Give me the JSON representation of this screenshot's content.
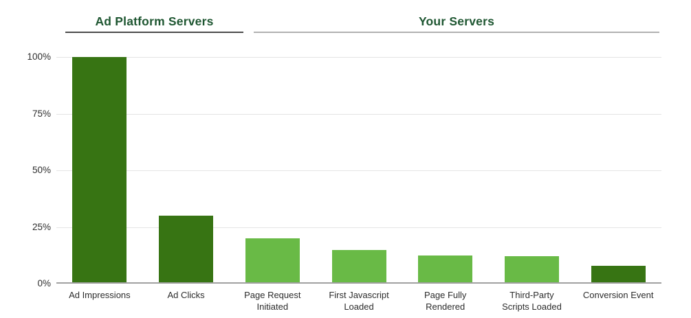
{
  "header": {
    "groups": [
      {
        "label": "Ad Platform Servers"
      },
      {
        "label": "Your Servers"
      }
    ]
  },
  "chart_data": {
    "type": "bar",
    "title": "",
    "xlabel": "",
    "ylabel": "",
    "ylim": [
      0,
      100
    ],
    "unit": "%",
    "grid": "horizontal",
    "legend": "none",
    "categories": [
      "Ad Impressions",
      "Ad Clicks",
      "Page Request Initiated",
      "First Javascript Loaded",
      "Page Fully Rendered",
      "Third-Party Scripts Loaded",
      "Conversion Event"
    ],
    "categories_wrapped": [
      [
        "Ad Impressions"
      ],
      [
        "Ad Clicks"
      ],
      [
        "Page Request",
        "Initiated"
      ],
      [
        "First Javascript",
        "Loaded"
      ],
      [
        "Page Fully",
        "Rendered"
      ],
      [
        "Third-Party",
        "Scripts Loaded"
      ],
      [
        "Conversion Event"
      ]
    ],
    "values": [
      100,
      30,
      20,
      15,
      12.5,
      12,
      8
    ],
    "y_ticks": [
      {
        "value": 100,
        "label": "100%"
      },
      {
        "value": 75,
        "label": "75%"
      },
      {
        "value": 50,
        "label": "50%"
      },
      {
        "value": 25,
        "label": "25%"
      },
      {
        "value": 0,
        "label": "0%"
      }
    ],
    "groups": [
      {
        "label": "Ad Platform Servers",
        "bar_indexes": [
          0,
          1
        ]
      },
      {
        "label": "Your Servers",
        "bar_indexes": [
          2,
          3,
          4,
          5,
          6
        ]
      }
    ],
    "bar_color_roles": [
      "dark",
      "dark",
      "light",
      "light",
      "light",
      "light",
      "dark"
    ],
    "palette": {
      "dark": "#377413",
      "light": "#69ba46"
    }
  },
  "colors": {
    "header_text": "#1e5631",
    "rule_dark": "#4a4a4a",
    "rule_light": "#b0b0b0",
    "gridline": "#e4e4e4",
    "baseline": "#a0a0a0",
    "axis_text": "#2e2e2e"
  }
}
